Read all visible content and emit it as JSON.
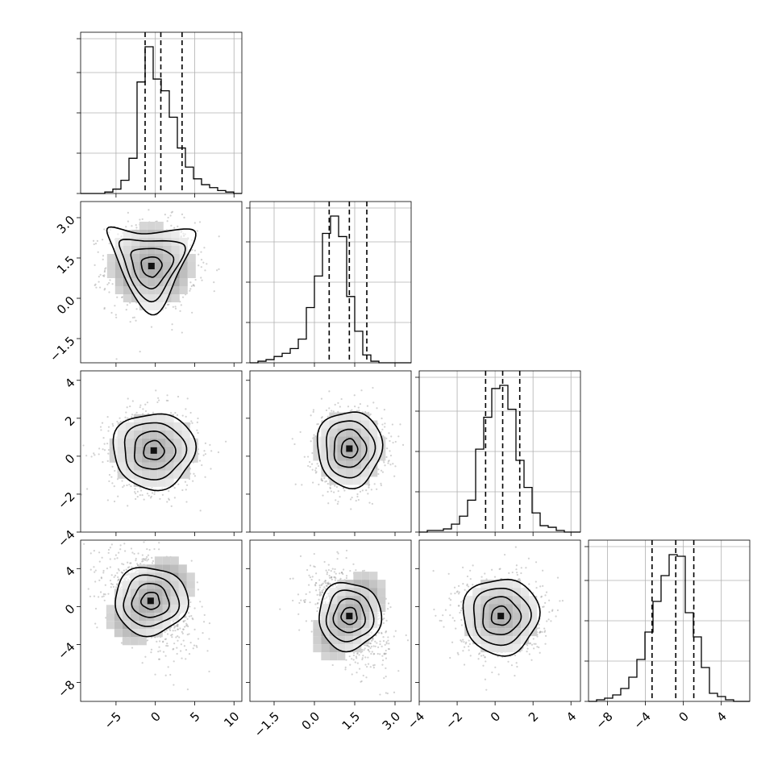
{
  "chart_data": {
    "type": "corner",
    "title": "",
    "parameters": [
      {
        "range": [
          -9.5,
          11
        ],
        "ticks": [
          -5,
          0,
          5,
          10
        ],
        "tick_labels": [
          "−5",
          "0",
          "5",
          "10"
        ],
        "quantiles": [
          -1.3,
          0.7,
          3.4
        ],
        "hist_edges_start": -9.5,
        "hist_bin_width": 1.025,
        "hist_counts": [
          0,
          0,
          0,
          1,
          3,
          9,
          24,
          76,
          100,
          78,
          70,
          52,
          31,
          18,
          10,
          6,
          4,
          2,
          1,
          0
        ]
      },
      {
        "range": [
          -2.4,
          3.6
        ],
        "ticks": [
          -1.5,
          0,
          1.5,
          3
        ],
        "tick_labels": [
          "−1.5",
          "0.0",
          "1.5",
          "3.0"
        ],
        "quantiles": [
          0.55,
          1.3,
          1.95
        ],
        "hist_edges_start": -2.4,
        "hist_bin_width": 0.3,
        "hist_counts": [
          0,
          1,
          2,
          4,
          6,
          9,
          15,
          35,
          55,
          82,
          93,
          80,
          42,
          20,
          5,
          1,
          0,
          0,
          0,
          0
        ]
      },
      {
        "range": [
          -4,
          4.5
        ],
        "ticks": [
          -4,
          -2,
          0,
          2,
          4
        ],
        "tick_labels": [
          "−4",
          "−2",
          "0",
          "2",
          "4"
        ],
        "quantiles": [
          -0.5,
          0.4,
          1.3
        ],
        "hist_edges_start": -4,
        "hist_bin_width": 0.425,
        "hist_counts": [
          0,
          1,
          1,
          2,
          5,
          10,
          20,
          52,
          72,
          90,
          92,
          77,
          45,
          28,
          12,
          4,
          3,
          1,
          0,
          0
        ]
      },
      {
        "range": [
          -10,
          7
        ],
        "ticks": [
          -8,
          -4,
          0,
          4
        ],
        "tick_labels": [
          "−8",
          "−4",
          "0",
          "4"
        ],
        "quantiles": [
          -3.3,
          -0.8,
          1.1
        ],
        "hist_edges_start": -10,
        "hist_bin_width": 0.85,
        "hist_counts": [
          0,
          1,
          2,
          4,
          8,
          15,
          26,
          43,
          62,
          78,
          91,
          90,
          55,
          40,
          21,
          5,
          3,
          1,
          0,
          0
        ]
      }
    ],
    "contours": [
      {
        "row": 1,
        "col": 0,
        "mode": [
          -0.5,
          1.2
        ],
        "sigma": [
          2.6,
          0.75
        ],
        "shape": "crescent"
      },
      {
        "row": 2,
        "col": 0,
        "mode": [
          -0.2,
          0.3
        ],
        "sigma": [
          2.6,
          1.0
        ],
        "shape": "oval"
      },
      {
        "row": 2,
        "col": 1,
        "mode": [
          1.3,
          0.4
        ],
        "sigma": [
          0.6,
          1.0
        ],
        "shape": "oval"
      },
      {
        "row": 3,
        "col": 0,
        "mode": [
          -0.6,
          0.6
        ],
        "sigma": [
          2.6,
          2.0
        ],
        "shape": "tilted"
      },
      {
        "row": 3,
        "col": 1,
        "mode": [
          1.3,
          -1.0
        ],
        "sigma": [
          0.65,
          2.0
        ],
        "shape": "tilted"
      },
      {
        "row": 3,
        "col": 2,
        "mode": [
          0.3,
          -1.0
        ],
        "sigma": [
          1.0,
          2.0
        ],
        "shape": "oval"
      }
    ],
    "grid": true,
    "legend": "none"
  }
}
